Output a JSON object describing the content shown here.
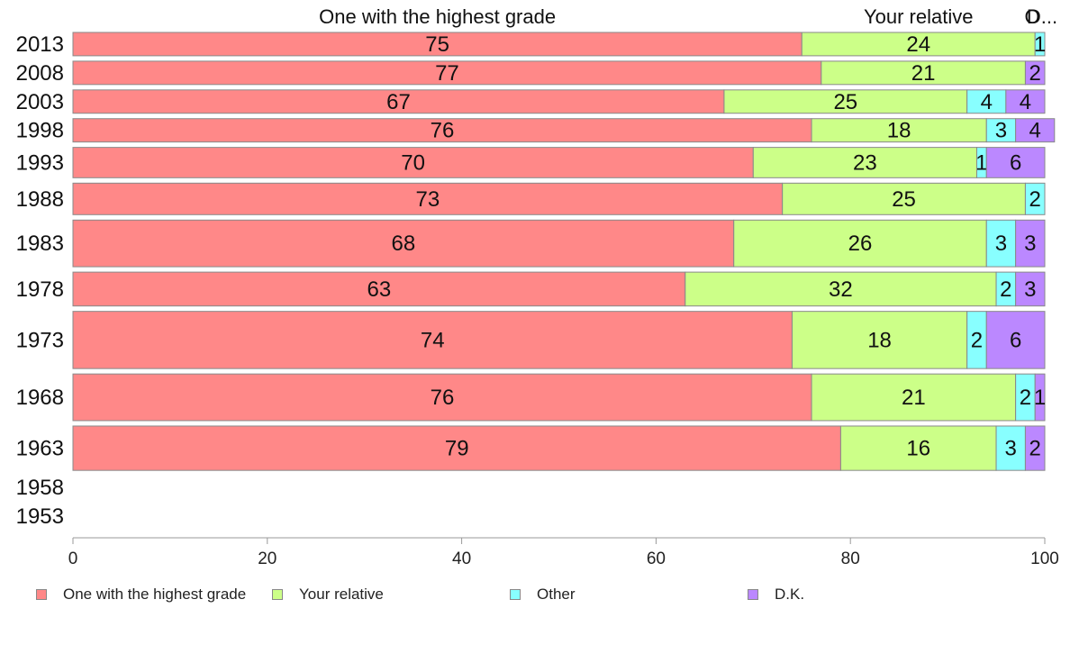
{
  "chart_data": {
    "type": "bar",
    "orientation": "horizontal",
    "stacked": true,
    "categories": [
      "2013",
      "2008",
      "2003",
      "1998",
      "1993",
      "1988",
      "1983",
      "1978",
      "1973",
      "1968",
      "1963",
      "1958",
      "1953"
    ],
    "series": [
      {
        "name": "One with the highest grade",
        "color": "#ff8888",
        "values": [
          75,
          77,
          67,
          76,
          70,
          73,
          68,
          63,
          74,
          76,
          79,
          null,
          null
        ]
      },
      {
        "name": "Your relative",
        "color": "#ccff88",
        "values": [
          24,
          21,
          25,
          18,
          23,
          25,
          26,
          32,
          18,
          21,
          16,
          null,
          null
        ]
      },
      {
        "name": "Other",
        "color": "#88ffff",
        "values": [
          1,
          0,
          4,
          3,
          1,
          2,
          3,
          2,
          2,
          2,
          3,
          null,
          null
        ]
      },
      {
        "name": "D.K.",
        "color": "#bb88ff",
        "values": [
          0,
          2,
          4,
          4,
          6,
          0,
          3,
          3,
          6,
          1,
          2,
          null,
          null
        ]
      }
    ],
    "relative_sample_size": [
      1.0,
      1.0,
      0.85,
      1.0,
      1.3,
      1.35,
      2.0,
      1.45,
      2.45,
      2.0,
      1.9,
      0,
      0
    ],
    "top_labels": [
      "One with the highest grade",
      "Your relative",
      "O",
      "D..."
    ],
    "xlim": [
      0,
      100
    ],
    "xticks": [
      0,
      20,
      40,
      60,
      80,
      100
    ],
    "xlabel": "",
    "ylabel": "",
    "grid": false,
    "legend_position": "bottom"
  }
}
